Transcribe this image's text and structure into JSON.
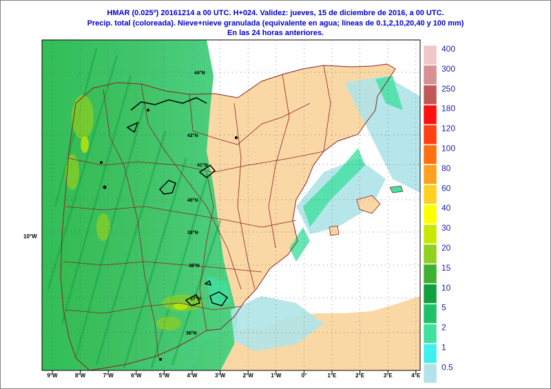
{
  "header": {
    "line1": "HMAR (0.025º) 20161214 a 00 UTC.  H+024. Validez: jueves, 15 de diciembre de 2016,  a  00 UTC.",
    "line2": "Precip. total (coloreada). Nieve+nieve granulada (equivalente en agua; líneas de 0.1,2,10,20,40 y 100 mm)",
    "line3": "En las 24 horas anteriores."
  },
  "axes": {
    "lon_ticks": [
      "9°W",
      "8°W",
      "7°W",
      "6°W",
      "5°W",
      "4°W",
      "3°W",
      "2°W",
      "1°W",
      "0°",
      "1°E",
      "2°E",
      "3°E",
      "4°E"
    ],
    "lat_labels": [
      "44°N",
      "42°N",
      "41°N",
      "40°N",
      "39°N",
      "38°N",
      "37°N",
      "36°N"
    ],
    "side_label": "10°W"
  },
  "legend": {
    "levels": [
      {
        "label": "400",
        "color": "#f0c8c8"
      },
      {
        "label": "300",
        "color": "#d89090"
      },
      {
        "label": "250",
        "color": "#c05858"
      },
      {
        "label": "180",
        "color": "#ff1010"
      },
      {
        "label": "120",
        "color": "#ff4010"
      },
      {
        "label": "100",
        "color": "#ff7010"
      },
      {
        "label": "80",
        "color": "#ffa020"
      },
      {
        "label": "60",
        "color": "#ffd020"
      },
      {
        "label": "40",
        "color": "#ffff00"
      },
      {
        "label": "30",
        "color": "#c8e800"
      },
      {
        "label": "20",
        "color": "#90d020"
      },
      {
        "label": "15",
        "color": "#40b030"
      },
      {
        "label": "10",
        "color": "#10a040"
      },
      {
        "label": "5",
        "color": "#20c068"
      },
      {
        "label": "2",
        "color": "#40e0a0"
      },
      {
        "label": "1",
        "color": "#40f0f0"
      },
      {
        "label": "0.5",
        "color": "#b0e4e8"
      }
    ]
  },
  "colors": {
    "land": "#fad8a6",
    "sea": "#ffffff",
    "borders": "#8b2020",
    "grid": "#555555",
    "title": "#0000cc"
  }
}
